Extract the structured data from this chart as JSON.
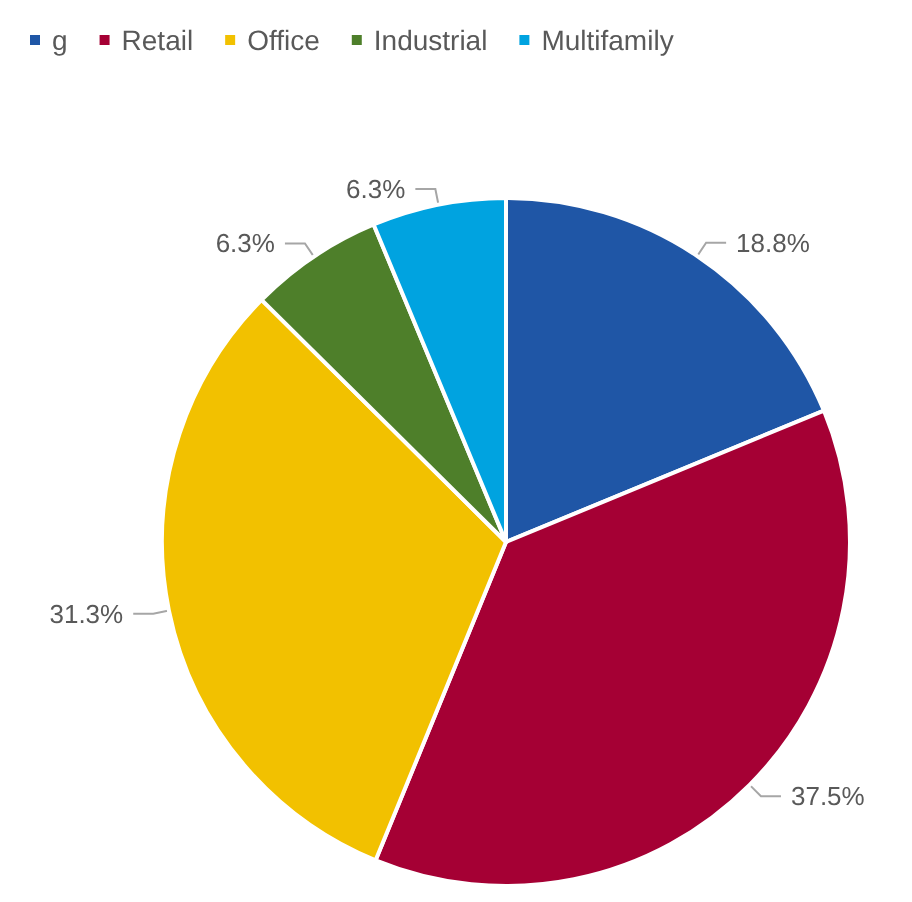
{
  "chart_data": {
    "type": "pie",
    "categories": [
      "g",
      "Retail",
      "Office",
      "Industrial",
      "Multifamily"
    ],
    "values": [
      18.8,
      37.5,
      31.3,
      6.3,
      6.3
    ],
    "value_labels": [
      "18.8%",
      "37.5%",
      "31.3%",
      "6.3%",
      "6.3%"
    ],
    "colors": [
      "#1f56a6",
      "#a50034",
      "#f2c100",
      "#4e7f2a",
      "#00a3e0"
    ],
    "legend": "top left"
  }
}
